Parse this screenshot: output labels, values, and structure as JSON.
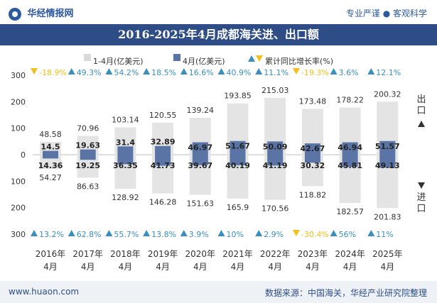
{
  "header": {
    "brand": "华经情报网",
    "slogan": "专业严谨 ● 客观科学"
  },
  "title": "2016-2025年4月成都海关进、出口额",
  "footer": {
    "website": "www.huaon.com",
    "source": "数据来源：中国海关，华经产业研究院整理"
  },
  "side_labels": {
    "export": "出口",
    "import": "进口"
  },
  "chart_data": {
    "type": "bar",
    "title": "2016-2025年4月成都海关进、出口额",
    "legend": [
      "1-4月(亿美元)",
      "4月(亿美元)",
      "累计同比增长率(%)"
    ],
    "legend_placement": "top",
    "categories": [
      "2016年4月",
      "2017年4月",
      "2018年4月",
      "2019年4月",
      "2020年4月",
      "2021年4月",
      "2022年4月",
      "2023年4月",
      "2024年4月",
      "2025年4月"
    ],
    "category_lines": [
      [
        "2016年",
        "4月"
      ],
      [
        "2017年",
        "4月"
      ],
      [
        "2018年",
        "4月"
      ],
      [
        "2019年",
        "4月"
      ],
      [
        "2020年",
        "4月"
      ],
      [
        "2021年",
        "4月"
      ],
      [
        "2022年",
        "4月"
      ],
      [
        "2023年",
        "4月"
      ],
      [
        "2024年",
        "4月"
      ],
      [
        "2025年",
        "4月"
      ]
    ],
    "export": {
      "ytd": [
        48.58,
        70.96,
        103.14,
        120.55,
        139.24,
        193.85,
        215.03,
        173.48,
        178.22,
        200.32
      ],
      "month": [
        14.5,
        19.63,
        31.4,
        32.89,
        46.97,
        51.67,
        50.09,
        42.67,
        46.94,
        51.57
      ],
      "growth": [
        "-18.9%",
        "49.3%",
        "54.2%",
        "18.5%",
        "16.6%",
        "40.9%",
        "11.1%",
        "-19.3%",
        "3.6%",
        "12.1%"
      ],
      "growth_dir": [
        "down",
        "up",
        "up",
        "up",
        "up",
        "up",
        "up",
        "down",
        "up",
        "up"
      ]
    },
    "import": {
      "ytd": [
        54.27,
        86.63,
        128.92,
        146.28,
        151.63,
        165.9,
        170.56,
        118.82,
        182.57,
        201.83
      ],
      "month": [
        14.36,
        19.25,
        36.35,
        41.73,
        39.67,
        40.19,
        41.19,
        30.32,
        45.81,
        49.13
      ],
      "growth": [
        "13.2%",
        "62.8%",
        "55.7%",
        "13.8%",
        "3.9%",
        "10%",
        "2.9%",
        "-30.4%",
        "56%",
        "11%"
      ],
      "growth_dir": [
        "up",
        "up",
        "up",
        "up",
        "up",
        "up",
        "up",
        "down",
        "up",
        "up"
      ]
    },
    "y_ticks": [
      "300",
      "200",
      "100",
      "0",
      "100",
      "200",
      "300"
    ],
    "ylim": [
      -300,
      300
    ],
    "colors": {
      "ytd": "#e4e4e4",
      "month": "#5a74a6",
      "up": "#3a8fc0",
      "down": "#f4bf1a",
      "text": "#333333"
    }
  }
}
